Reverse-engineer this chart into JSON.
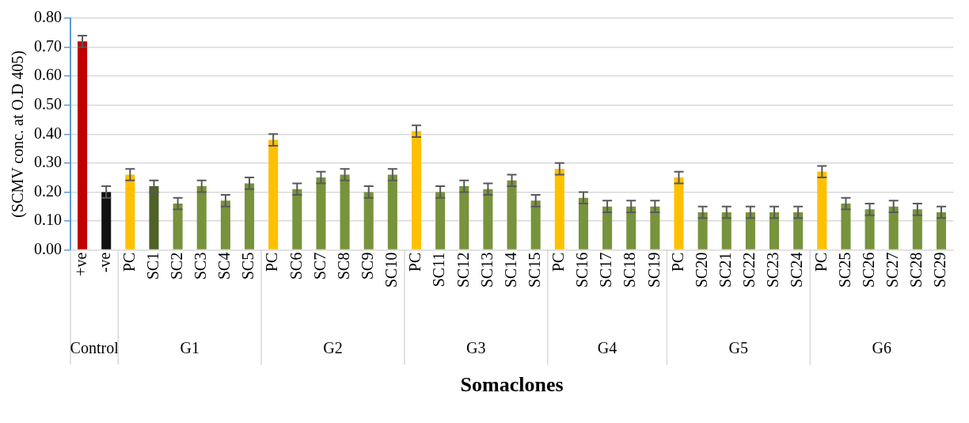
{
  "chart_data": {
    "type": "bar",
    "xlabel": "Somaclones",
    "ylabel": "(SCMV conc. at O.D 405)",
    "categories": [
      "+ve",
      "-ve",
      "PC",
      "SC1",
      "SC2",
      "SC3",
      "SC4",
      "SC5",
      "PC",
      "SC6",
      "SC7",
      "SC8",
      "SC9",
      "SC10",
      "PC",
      "SC11",
      "SC12",
      "SC13",
      "SC14",
      "SC15",
      "PC",
      "SC16",
      "SC17",
      "SC18",
      "SC19",
      "PC",
      "SC20",
      "SC21",
      "SC22",
      "SC23",
      "SC24",
      "PC",
      "SC25",
      "SC26",
      "SC27",
      "SC28",
      "SC29"
    ],
    "values": [
      0.72,
      0.2,
      0.26,
      0.22,
      0.16,
      0.22,
      0.17,
      0.23,
      0.38,
      0.21,
      0.25,
      0.26,
      0.2,
      0.26,
      0.41,
      0.2,
      0.22,
      0.21,
      0.24,
      0.17,
      0.28,
      0.18,
      0.15,
      0.15,
      0.15,
      0.25,
      0.13,
      0.13,
      0.13,
      0.13,
      0.13,
      0.27,
      0.16,
      0.14,
      0.15,
      0.14,
      0.13
    ],
    "errors": [
      0.02,
      0.02,
      0.02,
      0.02,
      0.02,
      0.02,
      0.02,
      0.02,
      0.02,
      0.02,
      0.02,
      0.02,
      0.02,
      0.02,
      0.02,
      0.02,
      0.02,
      0.02,
      0.02,
      0.02,
      0.02,
      0.02,
      0.02,
      0.02,
      0.02,
      0.02,
      0.02,
      0.02,
      0.02,
      0.02,
      0.02,
      0.02,
      0.02,
      0.02,
      0.02,
      0.02,
      0.02
    ],
    "colors": [
      "#c00000",
      "#111111",
      "#ffc000",
      "#4f6228",
      "#77933c",
      "#77933c",
      "#77933c",
      "#77933c",
      "#ffc000",
      "#77933c",
      "#77933c",
      "#77933c",
      "#77933c",
      "#77933c",
      "#ffc000",
      "#77933c",
      "#77933c",
      "#77933c",
      "#77933c",
      "#77933c",
      "#ffc000",
      "#77933c",
      "#77933c",
      "#77933c",
      "#77933c",
      "#ffc000",
      "#77933c",
      "#77933c",
      "#77933c",
      "#77933c",
      "#77933c",
      "#ffc000",
      "#77933c",
      "#77933c",
      "#77933c",
      "#77933c",
      "#77933c"
    ],
    "annotations": [
      "Control",
      "G1",
      "G2",
      "G3",
      "G4",
      "G5",
      "G6"
    ],
    "ylim": [
      0,
      0.8
    ],
    "yticks": [
      {
        "value": 0,
        "label": "0.00"
      },
      {
        "value": 0.1,
        "label": "0.10"
      },
      {
        "value": 0.2,
        "label": "0.20"
      },
      {
        "value": 0.3,
        "label": "0.30"
      },
      {
        "value": 0.4,
        "label": "0.40"
      },
      {
        "value": 0.5,
        "label": "0.50"
      },
      {
        "value": 0.6,
        "label": "0.60"
      },
      {
        "value": 0.7,
        "label": "0.70"
      },
      {
        "value": 0.8,
        "label": "0.80"
      }
    ],
    "grid": "y",
    "legend": false
  }
}
